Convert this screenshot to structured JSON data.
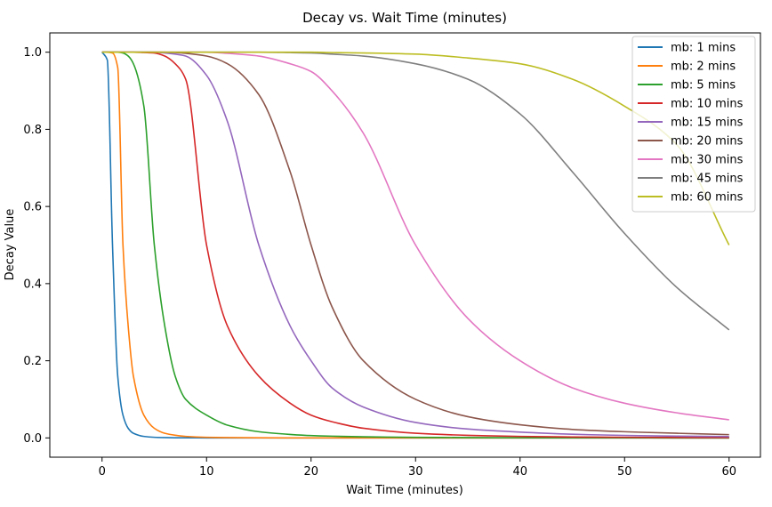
{
  "chart_data": {
    "type": "line",
    "title": "Decay vs. Wait Time (minutes)",
    "xlabel": "Wait Time (minutes)",
    "ylabel": "Decay Value",
    "xlim": [
      -5,
      63
    ],
    "ylim": [
      -0.05,
      1.05
    ],
    "x_ticks": [
      0,
      10,
      20,
      30,
      40,
      50,
      60
    ],
    "y_ticks": [
      0.0,
      0.2,
      0.4,
      0.6,
      0.8,
      1.0
    ],
    "x_tick_labels": [
      "0",
      "10",
      "20",
      "30",
      "40",
      "50",
      "60"
    ],
    "y_tick_labels": [
      "0.0",
      "0.2",
      "0.4",
      "0.6",
      "0.8",
      "1.0"
    ],
    "grid": false,
    "legend_position": "top-right",
    "x": [
      0,
      0.5,
      1,
      1.5,
      2,
      2.5,
      3,
      4,
      5,
      6,
      7,
      8,
      10,
      12,
      15,
      18,
      20,
      22,
      25,
      30,
      35,
      40,
      45,
      50,
      55,
      60
    ],
    "series": [
      {
        "name": "mb: 1 mins",
        "color": "#1f77b4",
        "values": [
          1.0,
          0.98,
          0.5,
          0.16,
          0.059,
          0.025,
          0.012,
          0.0039,
          0.0016,
          0.0008,
          0.0004,
          0.0002,
          0.0001,
          0.0,
          0.0,
          0.0,
          0.0,
          0.0,
          0.0,
          0.0,
          0.0,
          0.0,
          0.0,
          0.0,
          0.0,
          0.0
        ]
      },
      {
        "name": "mb: 2 mins",
        "color": "#ff7f0e",
        "values": [
          1.0,
          1.0,
          0.998,
          0.96,
          0.5,
          0.29,
          0.16,
          0.059,
          0.025,
          0.012,
          0.007,
          0.0039,
          0.0016,
          0.0008,
          0.0003,
          0.0001,
          0.0001,
          0.0,
          0.0,
          0.0,
          0.0,
          0.0,
          0.0,
          0.0,
          0.0,
          0.0
        ]
      },
      {
        "name": "mb: 5 mins",
        "color": "#2ca02c",
        "values": [
          1.0,
          1.0,
          1.0,
          1.0,
          0.998,
          0.99,
          0.97,
          0.86,
          0.5,
          0.29,
          0.16,
          0.1,
          0.059,
          0.033,
          0.016,
          0.009,
          0.006,
          0.0045,
          0.003,
          0.0015,
          0.0009,
          0.0005,
          0.0003,
          0.0002,
          0.0001,
          0.0001
        ]
      },
      {
        "name": "mb: 10 mins",
        "color": "#d62728",
        "values": [
          1.0,
          1.0,
          1.0,
          1.0,
          1.0,
          1.0,
          1.0,
          0.999,
          0.998,
          0.99,
          0.97,
          0.93,
          0.5,
          0.29,
          0.16,
          0.09,
          0.059,
          0.042,
          0.025,
          0.012,
          0.0067,
          0.0039,
          0.0024,
          0.0016,
          0.0011,
          0.0008
        ]
      },
      {
        "name": "mb: 15 mins",
        "color": "#9467bd",
        "values": [
          1.0,
          1.0,
          1.0,
          1.0,
          1.0,
          1.0,
          1.0,
          1.0,
          1.0,
          0.998,
          0.995,
          0.99,
          0.94,
          0.82,
          0.5,
          0.29,
          0.2,
          0.13,
          0.08,
          0.04,
          0.023,
          0.015,
          0.0095,
          0.0065,
          0.0046,
          0.0034
        ]
      },
      {
        "name": "mb: 20 mins",
        "color": "#8c564b",
        "values": [
          1.0,
          1.0,
          1.0,
          1.0,
          1.0,
          1.0,
          1.0,
          1.0,
          1.0,
          1.0,
          0.999,
          0.997,
          0.99,
          0.97,
          0.89,
          0.69,
          0.5,
          0.34,
          0.2,
          0.1,
          0.055,
          0.034,
          0.022,
          0.016,
          0.012,
          0.0085
        ]
      },
      {
        "name": "mb: 30 mins",
        "color": "#e377c2",
        "values": [
          1.0,
          1.0,
          1.0,
          1.0,
          1.0,
          1.0,
          1.0,
          1.0,
          1.0,
          1.0,
          1.0,
          1.0,
          1.0,
          0.997,
          0.99,
          0.97,
          0.95,
          0.9,
          0.79,
          0.5,
          0.31,
          0.2,
          0.13,
          0.09,
          0.065,
          0.047
        ]
      },
      {
        "name": "mb: 45 mins",
        "color": "#7f7f7f",
        "values": [
          1.0,
          1.0,
          1.0,
          1.0,
          1.0,
          1.0,
          1.0,
          1.0,
          1.0,
          1.0,
          1.0,
          1.0,
          1.0,
          1.0,
          1.0,
          0.999,
          0.998,
          0.995,
          0.99,
          0.97,
          0.93,
          0.84,
          0.69,
          0.53,
          0.39,
          0.28
        ]
      },
      {
        "name": "mb: 60 mins",
        "color": "#bcbd22",
        "values": [
          1.0,
          1.0,
          1.0,
          1.0,
          1.0,
          1.0,
          1.0,
          1.0,
          1.0,
          1.0,
          1.0,
          1.0,
          1.0,
          1.0,
          1.0,
          1.0,
          1.0,
          0.999,
          0.998,
          0.995,
          0.985,
          0.97,
          0.93,
          0.86,
          0.76,
          0.5
        ]
      }
    ]
  }
}
